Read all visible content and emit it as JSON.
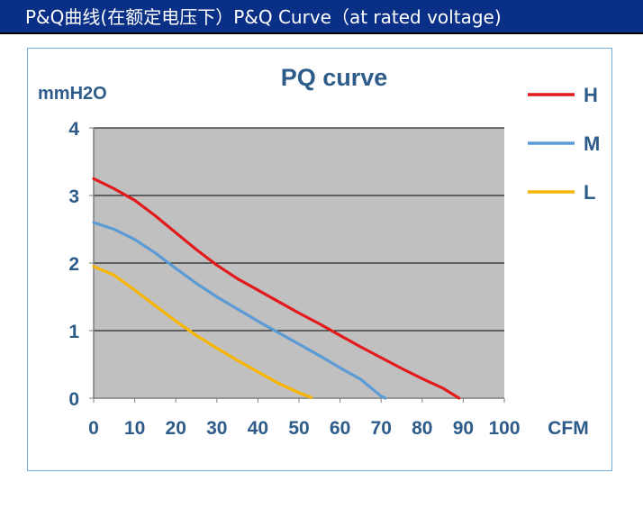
{
  "header": {
    "title": "P&Q曲线(在额定电压下）P&Q Curve（at rated voltage)"
  },
  "chart_data": {
    "type": "line",
    "title": "PQ curve",
    "ylabel": "mmH2O",
    "xlabel": "CFM",
    "xlim": [
      0,
      100
    ],
    "ylim": [
      0,
      4
    ],
    "x_ticks": [
      "0",
      "10",
      "20",
      "30",
      "40",
      "50",
      "60",
      "70",
      "80",
      "90",
      "100"
    ],
    "y_ticks": [
      "0",
      "1",
      "2",
      "3",
      "4"
    ],
    "grid": true,
    "legend_position": "top-right",
    "series": [
      {
        "name": "H",
        "color": "#e31a1c",
        "points": [
          [
            0,
            3.25
          ],
          [
            5,
            3.1
          ],
          [
            10,
            2.93
          ],
          [
            15,
            2.7
          ],
          [
            20,
            2.45
          ],
          [
            25,
            2.2
          ],
          [
            30,
            1.97
          ],
          [
            35,
            1.77
          ],
          [
            40,
            1.6
          ],
          [
            45,
            1.43
          ],
          [
            50,
            1.26
          ],
          [
            55,
            1.1
          ],
          [
            60,
            0.93
          ],
          [
            65,
            0.76
          ],
          [
            70,
            0.6
          ],
          [
            75,
            0.44
          ],
          [
            80,
            0.29
          ],
          [
            85,
            0.15
          ],
          [
            89,
            0
          ]
        ]
      },
      {
        "name": "M",
        "color": "#5b9bd5",
        "points": [
          [
            0,
            2.6
          ],
          [
            5,
            2.5
          ],
          [
            10,
            2.35
          ],
          [
            15,
            2.15
          ],
          [
            20,
            1.92
          ],
          [
            25,
            1.7
          ],
          [
            30,
            1.5
          ],
          [
            35,
            1.32
          ],
          [
            40,
            1.14
          ],
          [
            45,
            0.97
          ],
          [
            50,
            0.8
          ],
          [
            55,
            0.63
          ],
          [
            60,
            0.45
          ],
          [
            65,
            0.28
          ],
          [
            70,
            0.03
          ],
          [
            71,
            0
          ]
        ]
      },
      {
        "name": "L",
        "color": "#f7b500",
        "points": [
          [
            0,
            1.95
          ],
          [
            5,
            1.82
          ],
          [
            10,
            1.6
          ],
          [
            15,
            1.37
          ],
          [
            20,
            1.14
          ],
          [
            25,
            0.93
          ],
          [
            30,
            0.74
          ],
          [
            35,
            0.56
          ],
          [
            40,
            0.39
          ],
          [
            45,
            0.22
          ],
          [
            50,
            0.08
          ],
          [
            53,
            0.01
          ]
        ]
      }
    ]
  }
}
